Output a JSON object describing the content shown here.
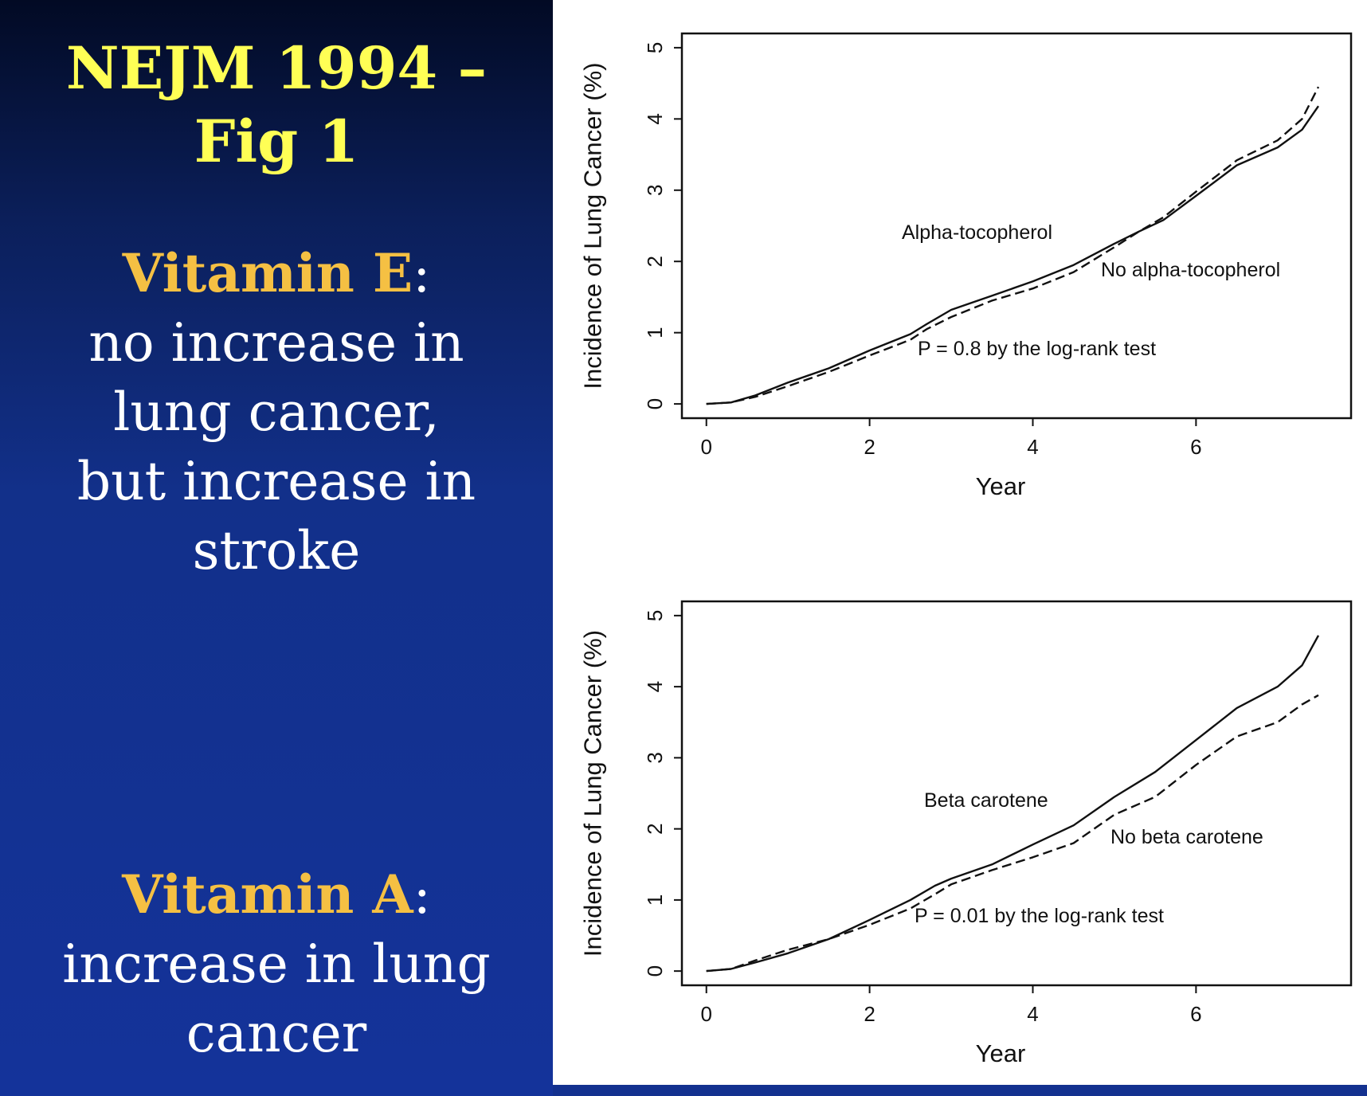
{
  "slide": {
    "title_lines": [
      "NEJM 1994 –",
      "Fig 1"
    ],
    "vitamin_e": {
      "heading": "Vitamin E",
      "colon": ":",
      "lines": [
        "no increase in",
        "lung cancer,",
        "but increase in",
        "stroke"
      ]
    },
    "vitamin_a": {
      "heading": "Vitamin A",
      "colon": ":",
      "lines": [
        "increase in lung",
        "cancer"
      ]
    }
  },
  "colors": {
    "title": "#ffff55",
    "heading": "#f5c043",
    "body_text": "#ffffff",
    "background": "#13318f",
    "figure_background": "#ffffff",
    "line": "#111111"
  },
  "chart_data": [
    {
      "type": "line",
      "xlabel": "Year",
      "ylabel": "Incidence of Lung Cancer (%)",
      "xlim": [
        -0.3,
        7.9
      ],
      "ylim": [
        -0.2,
        5.2
      ],
      "xticks": [
        0,
        2,
        4,
        6
      ],
      "yticks": [
        0,
        1,
        2,
        3,
        4,
        5
      ],
      "grid": false,
      "annotation": "P = 0.8 by the log-rank test",
      "series": [
        {
          "name": "Alpha-tocopherol",
          "style": "solid",
          "x": [
            0,
            0.3,
            0.6,
            1.0,
            1.5,
            2.0,
            2.5,
            2.7,
            3.0,
            3.5,
            4.0,
            4.5,
            5.0,
            5.3,
            5.6,
            6.0,
            6.5,
            7.0,
            7.3,
            7.5
          ],
          "y": [
            0,
            0.02,
            0.12,
            0.3,
            0.5,
            0.75,
            0.98,
            1.12,
            1.32,
            1.52,
            1.72,
            1.95,
            2.25,
            2.42,
            2.58,
            2.92,
            3.35,
            3.6,
            3.85,
            4.18
          ]
        },
        {
          "name": "No alpha-tocopherol",
          "style": "dashed",
          "x": [
            0,
            0.3,
            0.6,
            1.0,
            1.5,
            2.0,
            2.5,
            2.7,
            3.0,
            3.5,
            4.0,
            4.5,
            5.0,
            5.3,
            5.6,
            6.0,
            6.5,
            7.0,
            7.3,
            7.5
          ],
          "y": [
            0,
            0.02,
            0.1,
            0.25,
            0.45,
            0.68,
            0.9,
            1.05,
            1.22,
            1.45,
            1.62,
            1.85,
            2.2,
            2.42,
            2.62,
            2.98,
            3.42,
            3.7,
            4.0,
            4.45
          ]
        }
      ]
    },
    {
      "type": "line",
      "xlabel": "Year",
      "ylabel": "Incidence of Lung Cancer (%)",
      "xlim": [
        -0.3,
        7.9
      ],
      "ylim": [
        -0.2,
        5.2
      ],
      "xticks": [
        0,
        2,
        4,
        6
      ],
      "yticks": [
        0,
        1,
        2,
        3,
        4,
        5
      ],
      "grid": false,
      "annotation": "P = 0.01 by the log-rank test",
      "series": [
        {
          "name": "Beta carotene",
          "style": "solid",
          "x": [
            0,
            0.3,
            0.6,
            1.0,
            1.5,
            2.0,
            2.5,
            2.8,
            3.0,
            3.5,
            4.0,
            4.5,
            5.0,
            5.5,
            6.0,
            6.5,
            7.0,
            7.3,
            7.5
          ],
          "y": [
            0,
            0.03,
            0.12,
            0.25,
            0.45,
            0.72,
            1.0,
            1.2,
            1.3,
            1.5,
            1.78,
            2.05,
            2.45,
            2.8,
            3.25,
            3.7,
            4.0,
            4.3,
            4.72
          ]
        },
        {
          "name": "No beta carotene",
          "style": "dashed",
          "x": [
            0,
            0.3,
            0.6,
            1.0,
            1.5,
            2.0,
            2.5,
            2.8,
            3.0,
            3.5,
            4.0,
            4.5,
            5.0,
            5.5,
            6.0,
            6.5,
            7.0,
            7.3,
            7.5
          ],
          "y": [
            0,
            0.03,
            0.15,
            0.3,
            0.45,
            0.65,
            0.88,
            1.08,
            1.22,
            1.42,
            1.6,
            1.8,
            2.2,
            2.45,
            2.9,
            3.3,
            3.5,
            3.75,
            3.88
          ]
        }
      ]
    }
  ]
}
